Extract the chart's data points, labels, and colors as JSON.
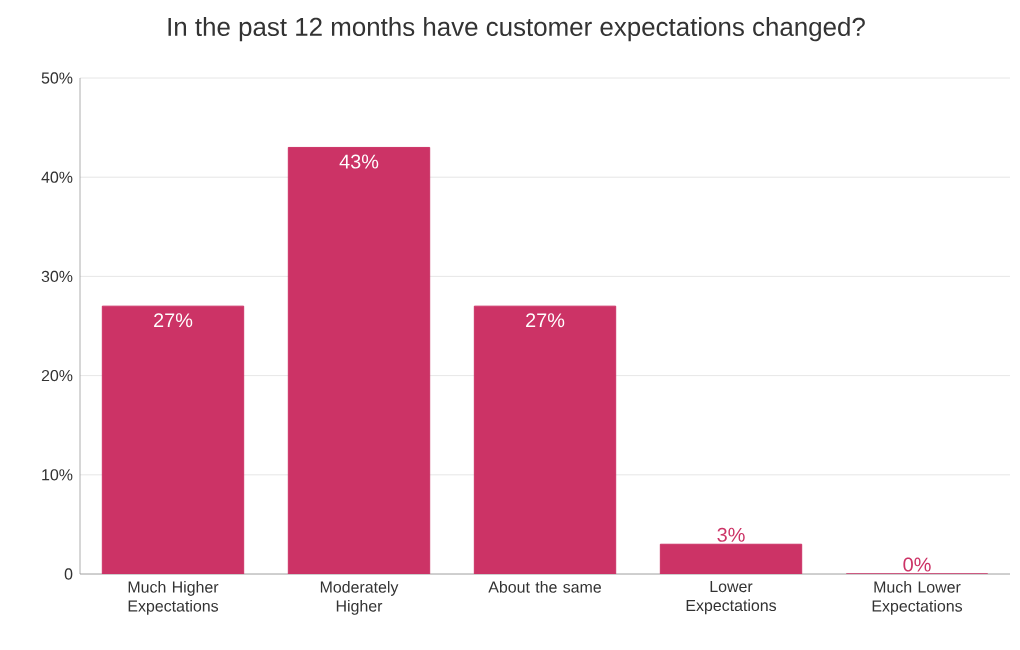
{
  "chart_data": {
    "type": "bar",
    "title": "In the past 12 months have customer expectations changed?",
    "categories": [
      "Much Higher Expectations",
      "Moderately Higher",
      "About the same",
      "Lower Expectations",
      "Much Lower Expectations"
    ],
    "values": [
      27,
      43,
      27,
      3,
      0
    ],
    "value_labels": [
      "27%",
      "43%",
      "27%",
      "3%",
      "0%"
    ],
    "color": "#cc3366",
    "ylim": [
      0,
      50
    ],
    "yticks": [
      {
        "value": 0,
        "label": "0"
      },
      {
        "value": 10,
        "label": "10%"
      },
      {
        "value": 20,
        "label": "20%"
      },
      {
        "value": 30,
        "label": "30%"
      },
      {
        "value": 40,
        "label": "40%"
      },
      {
        "value": 50,
        "label": "50%"
      }
    ],
    "grid": "y"
  }
}
